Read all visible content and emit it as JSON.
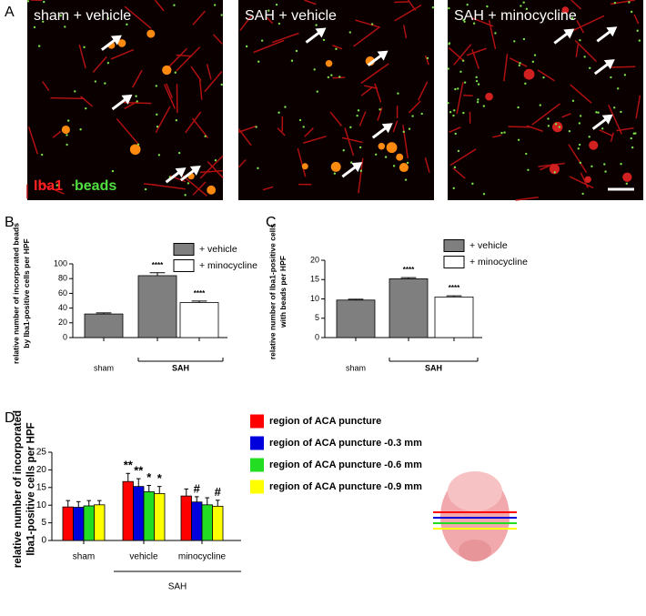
{
  "panel_labels": [
    "A",
    "B",
    "C",
    "D"
  ],
  "images": [
    {
      "label": "sham + vehicle"
    },
    {
      "label": "SAH + vehicle"
    },
    {
      "label": "SAH + minocycline"
    }
  ],
  "image_legend": {
    "red": "Iba1",
    "green": "beads"
  },
  "chart_data": [
    {
      "type": "bar",
      "ylabel": [
        "relative number of incorporated beads",
        "by Iba1-positive cells per HPF"
      ],
      "categories": [
        "sham",
        null,
        null
      ],
      "group_label": "SAH",
      "ylim": [
        0,
        100
      ],
      "yticks": [
        0,
        20,
        40,
        60,
        80,
        100
      ],
      "series": [
        {
          "name": "+ vehicle",
          "color": "#7f7f7f",
          "values": [
            32,
            84,
            null
          ],
          "errors": [
            1.5,
            4,
            null
          ],
          "significance": [
            null,
            "****",
            null
          ]
        },
        {
          "name": "+ minocycline",
          "color": "#ffffff",
          "values": [
            null,
            null,
            47.5
          ],
          "errors": [
            null,
            null,
            2
          ],
          "significance": [
            null,
            null,
            "****"
          ]
        }
      ]
    },
    {
      "type": "bar",
      "ylabel": [
        "relative number of Iba1-positive cells",
        "with beads per HPF"
      ],
      "categories": [
        "sham",
        null,
        null
      ],
      "group_label": "SAH",
      "ylim": [
        0,
        20
      ],
      "yticks": [
        0,
        5,
        10,
        15,
        20
      ],
      "series": [
        {
          "name": "+ vehicle",
          "color": "#7f7f7f",
          "values": [
            9.7,
            15.2,
            null
          ],
          "errors": [
            0.2,
            0.3,
            null
          ],
          "significance": [
            null,
            "****",
            null
          ]
        },
        {
          "name": "+ minocycline",
          "color": "#ffffff",
          "values": [
            null,
            null,
            10.5
          ],
          "errors": [
            null,
            null,
            0.3
          ],
          "significance": [
            null,
            null,
            "****"
          ]
        }
      ]
    },
    {
      "type": "bar",
      "ylabel": [
        "relative number of incorporated",
        "Iba1-positive cells per HPF"
      ],
      "categories": [
        "sham",
        "vehicle",
        "minocycline"
      ],
      "group_label": "SAH",
      "ylim": [
        0,
        25
      ],
      "yticks": [
        0,
        5,
        10,
        15,
        20,
        25
      ],
      "series": [
        {
          "name": "region of ACA puncture",
          "color": "#ff0000",
          "values": [
            9.5,
            16.7,
            12.6
          ],
          "errors": [
            1.8,
            2.3,
            2
          ],
          "significance": [
            null,
            "**",
            null
          ]
        },
        {
          "name": "region of ACA puncture -0.3 mm",
          "color": "#0000dd",
          "values": [
            9.4,
            15.3,
            10.9
          ],
          "errors": [
            1.6,
            2.2,
            1.5
          ],
          "significance": [
            null,
            "**",
            "#"
          ]
        },
        {
          "name": "region of ACA puncture -0.6 mm",
          "color": "#22dd22",
          "values": [
            9.8,
            13.8,
            10.1
          ],
          "errors": [
            1.5,
            1.8,
            2
          ],
          "significance": [
            null,
            "*",
            null
          ]
        },
        {
          "name": "region of ACA puncture -0.9 mm",
          "color": "#ffff00",
          "values": [
            10.1,
            13.3,
            9.7
          ],
          "errors": [
            1.2,
            2,
            1.7
          ],
          "significance": [
            null,
            "*",
            "#"
          ]
        }
      ]
    }
  ]
}
